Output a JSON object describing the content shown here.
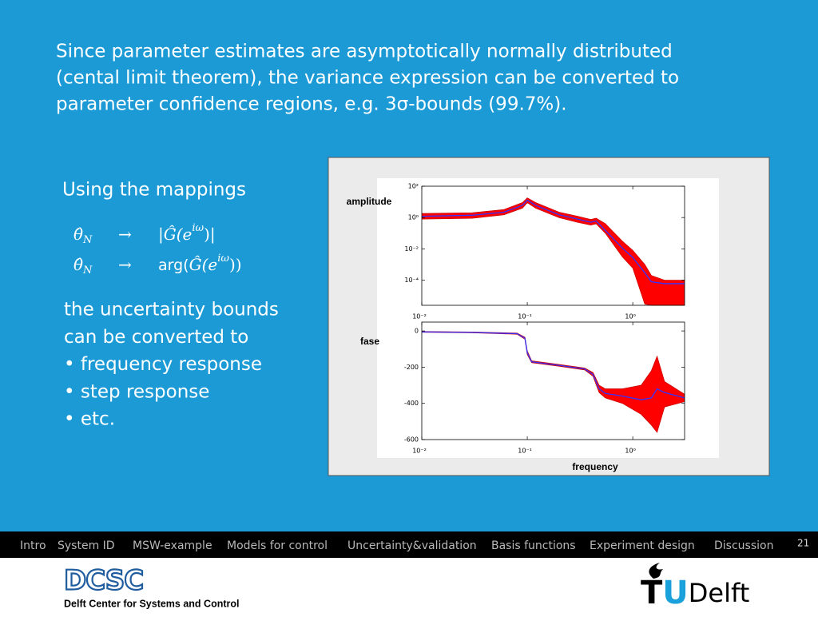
{
  "slide": {
    "paragraph": [
      "Since parameter estimates are asymptotically normally distributed",
      "(cental limit theorem), the variance expression can be converted to",
      "parameter confidence regions, e.g. 3σ-bounds (99.7%)."
    ],
    "intro": "Using the mappings",
    "math": [
      {
        "theta": "θ̂",
        "sub": "N",
        "arrow": "→",
        "pre": "|Ĝ(e",
        "sup": "iω",
        "post": ")|"
      },
      {
        "theta": "θ̂",
        "sub": "N",
        "arrow": "→",
        "fn": "arg(",
        "pre": "Ĝ(e",
        "sup": "iω",
        "post": "))"
      }
    ],
    "bullets": [
      "the uncertainty bounds",
      "can be converted to",
      "• frequency response",
      "• step response",
      "• etc."
    ],
    "nav": [
      "Intro",
      "System ID",
      "MSW-example",
      "Models for control",
      "Uncertainty&validation",
      "Basis functions",
      "Experiment design",
      "Discussion"
    ],
    "active_nav": 1,
    "page_number": "21",
    "logo_left": "DCSC",
    "logo_left_caption": "Delft Center for Systems and Control",
    "logo_right": {
      "t": "T",
      "u": "U",
      "rest": "Delft"
    }
  },
  "chart_data": [
    {
      "type": "line",
      "ylabel": "amplitude",
      "log_x": true,
      "log_y": true,
      "band_color": "#ff0000",
      "x": [
        0.01,
        0.03,
        0.06,
        0.09,
        0.1,
        0.12,
        0.2,
        0.3,
        0.4,
        0.45,
        0.55,
        0.8,
        1.0,
        1.3,
        1.5,
        2.0,
        3.1
      ],
      "xlim": [
        0.01,
        3.1
      ],
      "xticks": [
        {
          "value": 0.01,
          "label": "10⁻²"
        },
        {
          "value": 0.1,
          "label": "10⁻¹"
        },
        {
          "value": 1,
          "label": "10⁰"
        }
      ],
      "ylim": [
        2.5e-06,
        100
      ],
      "yticks": [
        {
          "value": 100,
          "label": "10²"
        },
        {
          "value": 1,
          "label": "10⁰"
        },
        {
          "value": 0.01,
          "label": "10⁻²"
        },
        {
          "value": 0.0001,
          "label": "10⁻⁴"
        }
      ],
      "series": [
        {
          "color": "#cc0000",
          "values": [
            1.8,
            2,
            3.2,
            9,
            18,
            9,
            2.2,
            1.2,
            0.75,
            0.9,
            0.4,
            0.03,
            0.008,
            0.001,
            0.0002,
            0.0001,
            0.0001
          ]
        },
        {
          "color": "#cc0000",
          "values": [
            0.8,
            0.9,
            1.5,
            4,
            9,
            4,
            1,
            0.5,
            0.33,
            0.4,
            0.1,
            0.003,
            0.0006,
            3e-06,
            2.5e-06,
            2.5e-06,
            2.5e-06
          ]
        },
        {
          "color": "#3333ff",
          "values": [
            1.2,
            1.4,
            2.2,
            6,
            13,
            6,
            1.5,
            0.8,
            0.5,
            0.6,
            0.15,
            0.011,
            0.0028,
            0.0003,
            8e-05,
            6e-05,
            6e-05
          ]
        }
      ]
    },
    {
      "type": "line",
      "ylabel": "fase",
      "xlabel": "frequency",
      "log_x": true,
      "log_y": false,
      "band_color": "#ff0000",
      "x": [
        0.01,
        0.03,
        0.08,
        0.095,
        0.1,
        0.11,
        0.2,
        0.35,
        0.42,
        0.48,
        0.55,
        0.8,
        1.2,
        1.5,
        1.7,
        2.0,
        3.1
      ],
      "xlim": [
        0.01,
        3.1
      ],
      "xticks": [
        {
          "value": 0.01,
          "label": "10⁻²"
        },
        {
          "value": 0.1,
          "label": "10⁻¹"
        },
        {
          "value": 1,
          "label": "10⁰"
        }
      ],
      "ylim": [
        -600,
        49
      ],
      "yticks": [
        0,
        -200,
        -400,
        -600
      ],
      "series": [
        {
          "color": "#cc0000",
          "values": [
            -3,
            -6,
            -12,
            -35,
            -110,
            -165,
            -185,
            -205,
            -230,
            -300,
            -320,
            -320,
            -300,
            -220,
            -140,
            -280,
            -350
          ]
        },
        {
          "color": "#cc0000",
          "values": [
            -7,
            -10,
            -18,
            -45,
            -130,
            -175,
            -195,
            -215,
            -250,
            -340,
            -370,
            -400,
            -460,
            -520,
            -560,
            -420,
            -390
          ]
        },
        {
          "color": "#3333ff",
          "values": [
            -5,
            -8,
            -15,
            -40,
            -120,
            -170,
            -190,
            -210,
            -240,
            -320,
            -345,
            -360,
            -380,
            -370,
            -320,
            -340,
            -370
          ]
        }
      ]
    }
  ]
}
